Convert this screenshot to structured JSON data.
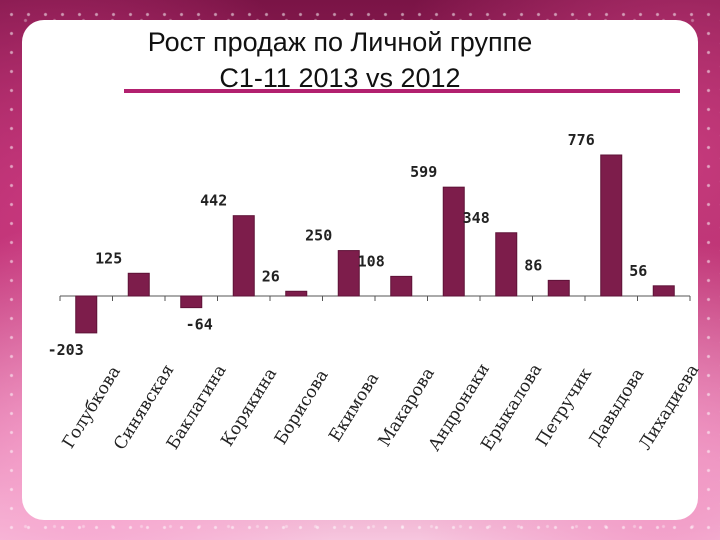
{
  "title_line1": "Рост продаж  по Личной группе",
  "title_line2": "С1-11 2013 vs 2012",
  "colors": {
    "bar": "#7d1d4b",
    "bar_shade": "#5e1237",
    "accent": "#b2206f"
  },
  "chart_data": {
    "type": "bar",
    "title": "Рост продаж  по Личной группе С1-11 2013 vs 2012",
    "xlabel": "",
    "ylabel": "",
    "categories": [
      "Голубкова",
      "Синявская",
      "Баклагина",
      "Корякина",
      "Борисова",
      "Екимова",
      "Макарова",
      "Андронаки",
      "Ерыкалова",
      "Петручик",
      "Давыдова",
      "Лихадиева"
    ],
    "values": [
      -203,
      125,
      -64,
      442,
      26,
      250,
      108,
      599,
      348,
      86,
      776,
      56
    ],
    "value_labels": [
      "-203",
      "125",
      "-64",
      "442",
      "26",
      "250",
      "108",
      "599",
      "348",
      "86",
      "776",
      "56"
    ],
    "ylim": [
      -203,
      776
    ],
    "grid": false,
    "legend": "none"
  }
}
